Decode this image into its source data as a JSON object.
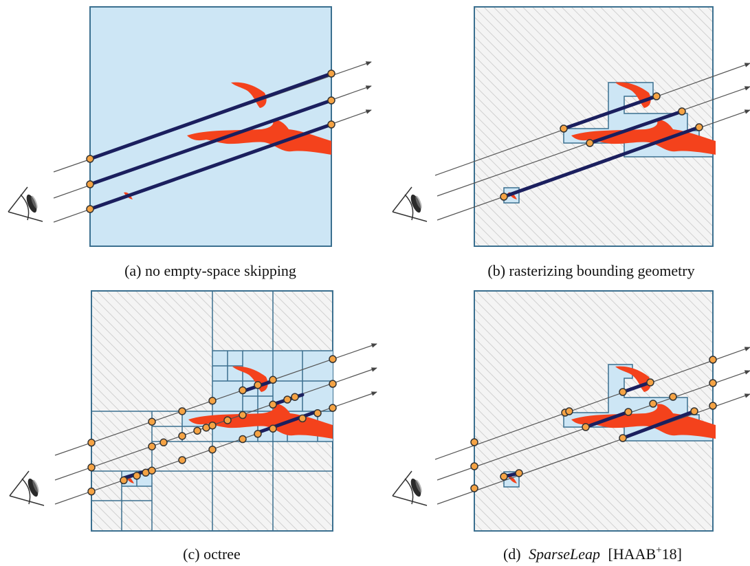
{
  "captions": [
    {
      "text": "(a) no empty-space skipping"
    },
    {
      "text": "(b) rasterizing bounding geometry"
    },
    {
      "text": "(c) octree"
    },
    {
      "label": "(d)",
      "name": "SparseLeap",
      "citation_start": "[HAAB",
      "superscript": "+",
      "citation_end": "18]"
    }
  ]
}
